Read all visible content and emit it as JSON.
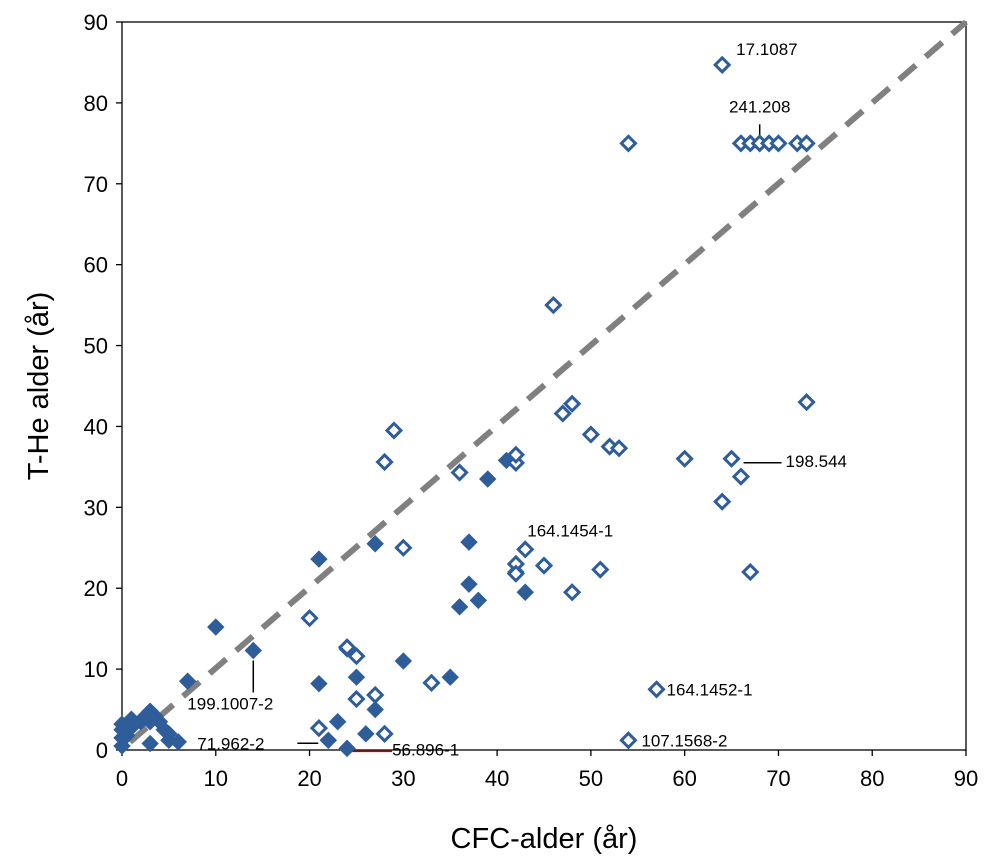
{
  "chart_data": {
    "type": "scatter",
    "title": "",
    "xlabel": "CFC-alder (år)",
    "ylabel": "T-He alder (år)",
    "xlim": [
      0,
      90
    ],
    "ylim": [
      0,
      90
    ],
    "x_ticks": [
      "0",
      "10",
      "20",
      "30",
      "40",
      "50",
      "60",
      "70",
      "80",
      "90"
    ],
    "y_ticks": [
      "0",
      "10",
      "20",
      "30",
      "40",
      "50",
      "60",
      "70",
      "80",
      "90"
    ],
    "grid": false,
    "legend": "none",
    "reference_line": {
      "label": "",
      "from": [
        0,
        0
      ],
      "to": [
        90,
        90
      ],
      "style": "dashed",
      "color": "#808080"
    },
    "series": [
      {
        "marker": "filled-diamond",
        "color": "#2e5d9a",
        "points": [
          [
            0,
            0.5
          ],
          [
            0,
            1.5
          ],
          [
            0,
            2.5
          ],
          [
            0,
            3.2
          ],
          [
            0.5,
            1.8
          ],
          [
            1,
            2.8
          ],
          [
            1,
            3.8
          ],
          [
            2,
            3.5
          ],
          [
            2.5,
            4.2
          ],
          [
            3,
            3.5
          ],
          [
            3,
            4.8
          ],
          [
            3,
            0.8
          ],
          [
            3.5,
            4.2
          ],
          [
            4,
            3.5
          ],
          [
            4.5,
            2.5
          ],
          [
            5,
            2.0
          ],
          [
            5,
            1.2
          ],
          [
            6,
            1.0
          ],
          [
            7,
            8.5
          ],
          [
            10,
            15.2
          ],
          [
            14,
            12.3
          ],
          [
            21,
            23.6
          ],
          [
            21,
            8.2
          ],
          [
            22,
            1.2
          ],
          [
            23,
            3.5
          ],
          [
            24,
            12.5
          ],
          [
            24,
            0.2
          ],
          [
            25,
            9.0
          ],
          [
            26,
            2.0
          ],
          [
            27,
            25.5
          ],
          [
            27,
            5.0
          ],
          [
            30,
            11.0
          ],
          [
            35,
            9.0
          ],
          [
            36,
            17.7
          ],
          [
            37,
            25.7
          ],
          [
            37,
            20.5
          ],
          [
            38,
            18.5
          ],
          [
            39,
            33.5
          ],
          [
            41,
            35.8
          ],
          [
            42,
            22.0
          ],
          [
            43,
            19.5
          ]
        ]
      },
      {
        "marker": "open-diamond",
        "color": "#2e5d9a",
        "points": [
          [
            20,
            16.3
          ],
          [
            21,
            2.7
          ],
          [
            24,
            12.7
          ],
          [
            25,
            11.6
          ],
          [
            25,
            6.3
          ],
          [
            27,
            6.8
          ],
          [
            28,
            35.6
          ],
          [
            28,
            2.0
          ],
          [
            29,
            39.5
          ],
          [
            30,
            25.0
          ],
          [
            33,
            8.3
          ],
          [
            36,
            34.3
          ],
          [
            42,
            35.5
          ],
          [
            42,
            36.5
          ],
          [
            42,
            23.0
          ],
          [
            42,
            21.8
          ],
          [
            43,
            24.8
          ],
          [
            45,
            22.8
          ],
          [
            46,
            55.0
          ],
          [
            47,
            41.6
          ],
          [
            48,
            42.8
          ],
          [
            48,
            19.5
          ],
          [
            50,
            39.0
          ],
          [
            51,
            22.3
          ],
          [
            52,
            37.5
          ],
          [
            53,
            37.3
          ],
          [
            54,
            75.0
          ],
          [
            54,
            1.2
          ],
          [
            57,
            7.5
          ],
          [
            60,
            36.0
          ],
          [
            64,
            84.7
          ],
          [
            64,
            30.7
          ],
          [
            65,
            36.0
          ],
          [
            66,
            33.8
          ],
          [
            66,
            75.0
          ],
          [
            67,
            75.0
          ],
          [
            67,
            22.0
          ],
          [
            68,
            75.0
          ],
          [
            69,
            75.0
          ],
          [
            70,
            75.0
          ],
          [
            72,
            75.0
          ],
          [
            73,
            75.0
          ],
          [
            73,
            43.0
          ]
        ]
      }
    ],
    "annotations": [
      {
        "text": "17.1087",
        "x": 64,
        "y": 84.7
      },
      {
        "text": "241.208",
        "x": 68,
        "y": 75.0
      },
      {
        "text": "198.544",
        "x": 65,
        "y": 36.0
      },
      {
        "text": "164.1454-1",
        "x": 43,
        "y": 24.8
      },
      {
        "text": "164.1452-1",
        "x": 57,
        "y": 7.5
      },
      {
        "text": "199.1007-2",
        "x": 14,
        "y": 12.3
      },
      {
        "text": "71.962-2",
        "x": 22,
        "y": 1.2
      },
      {
        "text": "56.896-1",
        "x": 24,
        "y": 0.2
      },
      {
        "text": "107.1568-2",
        "x": 54,
        "y": 1.2
      }
    ]
  }
}
